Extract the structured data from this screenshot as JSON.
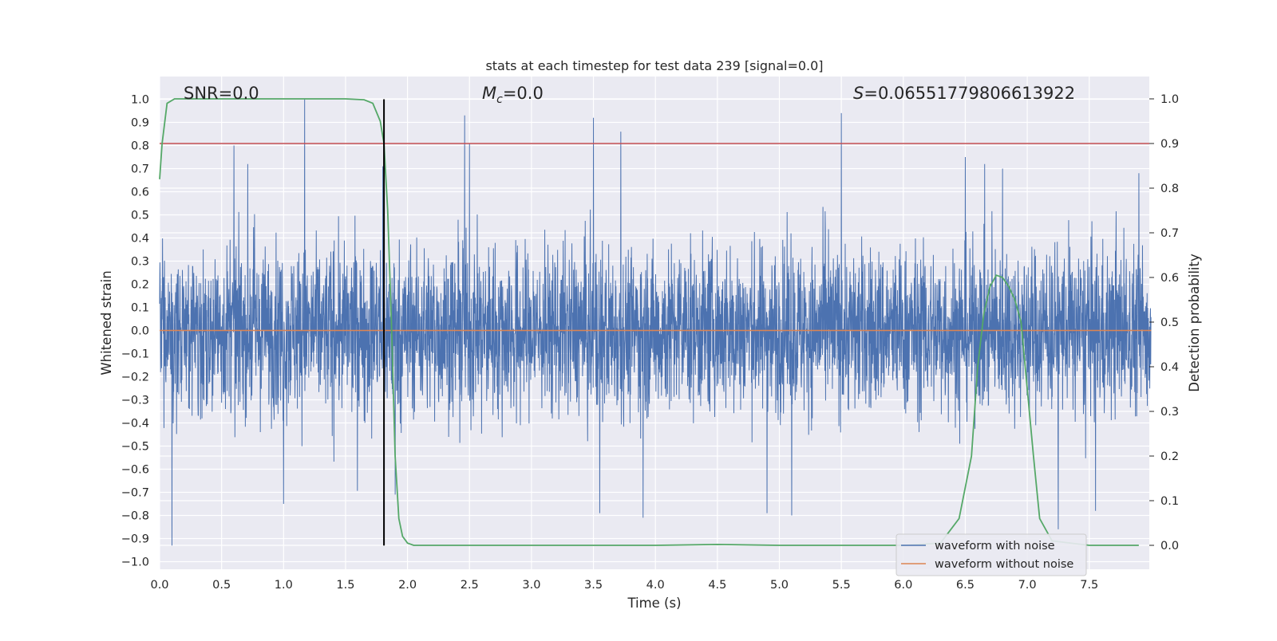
{
  "chart_data": {
    "type": "line",
    "title": "stats at each timestep for test data 239 [signal=0.0]",
    "xlabel": "Time (s)",
    "ylabel": "Whitened strain",
    "y2label": "Detection probability",
    "xlim": [
      0.0,
      8.0
    ],
    "ylim": [
      -1.05,
      1.05
    ],
    "y2lim": [
      -0.05,
      1.05
    ],
    "xticks": [
      "0.0",
      "0.5",
      "1.0",
      "1.5",
      "2.0",
      "2.5",
      "3.0",
      "3.5",
      "4.0",
      "4.5",
      "5.0",
      "5.5",
      "6.0",
      "6.5",
      "7.0",
      "7.5"
    ],
    "yticks": [
      "1.0",
      "0.9",
      "0.8",
      "0.7",
      "0.6",
      "0.5",
      "0.4",
      "0.3",
      "0.2",
      "0.1",
      "0.0",
      "−0.1",
      "−0.2",
      "−0.3",
      "−0.4",
      "−0.5",
      "−0.6",
      "−0.7",
      "−0.8",
      "−0.9",
      "−1.0"
    ],
    "y2ticks": [
      "1.0",
      "0.9",
      "0.8",
      "0.7",
      "0.6",
      "0.5",
      "0.4",
      "0.3",
      "0.2",
      "0.1",
      "0.0"
    ],
    "grid": true,
    "legend_position": "lower-right",
    "annotations": {
      "snr": "SNR=0.0",
      "mc_symbol": "M",
      "mc_sub": "c",
      "mc_value": "=0.0",
      "s_symbol": "S",
      "s_value": "=0.06551779806613922"
    },
    "threshold_line": {
      "y2": 0.9,
      "color": "#c44e52"
    },
    "marker_line": {
      "x": 1.81,
      "y_from": -0.93,
      "y_to": 1.0,
      "color": "#000000"
    },
    "series": [
      {
        "name": "waveform with noise",
        "color": "#4c72b0",
        "axis": "left",
        "style": "dense-noise",
        "approx_envelope": [
          -0.93,
          1.0
        ],
        "notable_peaks": [
          {
            "x": 1.17,
            "y": 1.0
          },
          {
            "x": 2.46,
            "y": 0.93
          },
          {
            "x": 5.5,
            "y": 0.94
          },
          {
            "x": 3.5,
            "y": 0.92
          },
          {
            "x": 3.72,
            "y": 0.86
          },
          {
            "x": 2.5,
            "y": 0.81
          },
          {
            "x": 0.6,
            "y": 0.8
          },
          {
            "x": 1.8,
            "y": 0.71
          },
          {
            "x": 6.5,
            "y": 0.75
          },
          {
            "x": 6.8,
            "y": 0.7
          },
          {
            "x": 7.9,
            "y": 0.68
          }
        ],
        "notable_troughs": [
          {
            "x": 0.1,
            "y": -0.93
          },
          {
            "x": 3.9,
            "y": -0.81
          },
          {
            "x": 7.25,
            "y": -0.86
          },
          {
            "x": 1.0,
            "y": -0.75
          },
          {
            "x": 3.55,
            "y": -0.79
          },
          {
            "x": 4.9,
            "y": -0.79
          },
          {
            "x": 5.1,
            "y": -0.8
          },
          {
            "x": 7.55,
            "y": -0.78
          },
          {
            "x": 1.9,
            "y": -0.71
          }
        ]
      },
      {
        "name": "waveform without noise",
        "color": "#dd8452",
        "axis": "left",
        "x": [
          0.0,
          8.0
        ],
        "y": [
          0.0,
          0.0
        ]
      },
      {
        "name": "",
        "color": "#55a868",
        "axis": "right",
        "x": [
          0.0,
          0.02,
          0.06,
          0.12,
          0.2,
          0.4,
          0.8,
          1.2,
          1.5,
          1.65,
          1.72,
          1.78,
          1.81,
          1.84,
          1.87,
          1.9,
          1.93,
          1.96,
          2.0,
          2.05,
          2.2,
          3.0,
          4.0,
          4.5,
          5.0,
          6.0,
          6.3,
          6.45,
          6.55,
          6.6,
          6.65,
          6.7,
          6.75,
          6.8,
          6.85,
          6.9,
          6.95,
          7.0,
          7.05,
          7.1,
          7.2,
          7.5,
          7.9
        ],
        "y": [
          0.82,
          0.9,
          0.99,
          1.0,
          1.0,
          1.0,
          1.0,
          1.0,
          1.0,
          0.998,
          0.99,
          0.95,
          0.9,
          0.75,
          0.5,
          0.2,
          0.06,
          0.02,
          0.005,
          0.0,
          0.0,
          0.0,
          0.0,
          0.002,
          0.0,
          0.0,
          0.005,
          0.06,
          0.2,
          0.4,
          0.52,
          0.58,
          0.605,
          0.6,
          0.58,
          0.55,
          0.5,
          0.35,
          0.2,
          0.06,
          0.01,
          0.0,
          0.0
        ]
      }
    ]
  }
}
